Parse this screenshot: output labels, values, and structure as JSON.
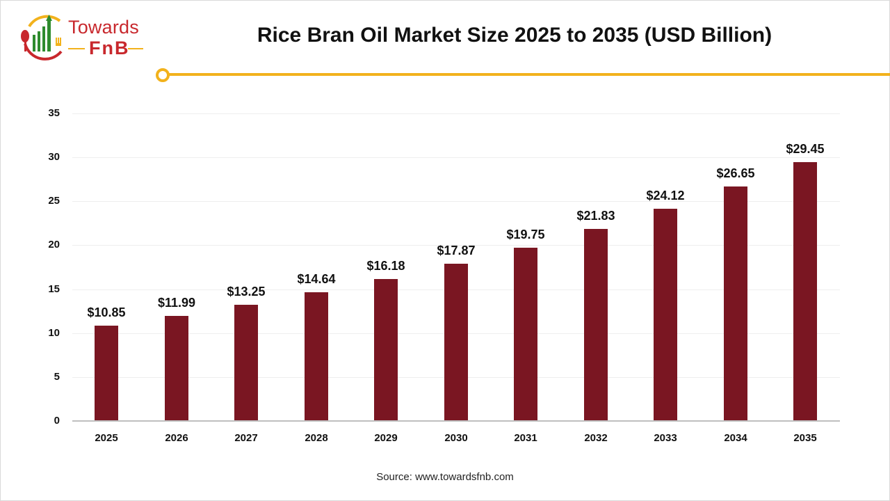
{
  "header": {
    "logo": {
      "line1": "Towards",
      "line2": "FnB"
    },
    "title": "Rice Bran Oil Market Size 2025 to 2035 (USD Billion)"
  },
  "colors": {
    "bar": "#7a1622",
    "accent": "#f2b21c",
    "logo_red": "#c8282d",
    "logo_green": "#2e8b2e"
  },
  "chart_data": {
    "type": "bar",
    "title": "Rice Bran Oil Market Size 2025 to 2035 (USD Billion)",
    "xlabel": "",
    "ylabel": "",
    "categories": [
      "2025",
      "2026",
      "2027",
      "2028",
      "2029",
      "2030",
      "2031",
      "2032",
      "2033",
      "2034",
      "2035"
    ],
    "values": [
      10.85,
      11.99,
      13.25,
      14.64,
      16.18,
      17.87,
      19.75,
      21.83,
      24.12,
      26.65,
      29.45
    ],
    "value_labels": [
      "$10.85",
      "$11.99",
      "$13.25",
      "$14.64",
      "$16.18",
      "$17.87",
      "$19.75",
      "$21.83",
      "$24.12",
      "$26.65",
      "$29.45"
    ],
    "ylim": [
      0,
      35
    ],
    "yticks": [
      0,
      5,
      10,
      15,
      20,
      25,
      30,
      35
    ],
    "ytick_labels": [
      "0",
      "5",
      "10",
      "15",
      "20",
      "25",
      "30",
      "35"
    ],
    "grid": true,
    "legend": "none"
  },
  "footer": {
    "source": "Source: www.towardsfnb.com"
  }
}
